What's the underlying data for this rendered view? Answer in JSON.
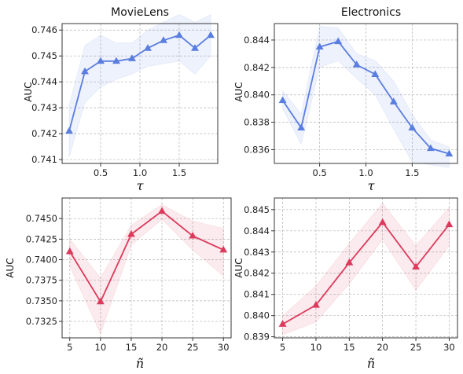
{
  "colors": {
    "blue": "#5a7de0",
    "red": "#dc3a5c"
  },
  "chart_data": [
    {
      "type": "line",
      "title": "MovieLens",
      "xlabel": "τ",
      "ylabel": "AUC",
      "color_key": "blue",
      "x": [
        0.1,
        0.3,
        0.5,
        0.7,
        0.9,
        1.1,
        1.3,
        1.5,
        1.7,
        1.9
      ],
      "y": [
        0.7421,
        0.7444,
        0.7448,
        0.7448,
        0.7449,
        0.7453,
        0.7456,
        0.7458,
        0.7453,
        0.7458
      ],
      "band_low": [
        0.7411,
        0.7432,
        0.7438,
        0.7441,
        0.7443,
        0.7446,
        0.7447,
        0.7448,
        0.7443,
        0.745
      ],
      "band_high": [
        0.7431,
        0.7454,
        0.7458,
        0.7455,
        0.7455,
        0.746,
        0.7463,
        0.7466,
        0.7463,
        0.7466
      ],
      "xlim": [
        0.01,
        1.99
      ],
      "ylim": [
        0.74085,
        0.74625
      ],
      "xticks": [
        0.5,
        1.0,
        1.5
      ],
      "xtick_labels": [
        "0.5",
        "1.0",
        "1.5"
      ],
      "yticks": [
        0.741,
        0.742,
        0.743,
        0.744,
        0.745,
        0.746
      ],
      "ytick_labels": [
        "0.741",
        "0.742",
        "0.743",
        "0.744",
        "0.745",
        "0.746"
      ]
    },
    {
      "type": "line",
      "title": "Electronics",
      "xlabel": "τ",
      "ylabel": "AUC",
      "color_key": "blue",
      "x": [
        0.1,
        0.3,
        0.5,
        0.7,
        0.9,
        1.1,
        1.3,
        1.5,
        1.7,
        1.9
      ],
      "y": [
        0.8396,
        0.8376,
        0.8435,
        0.8439,
        0.8422,
        0.8415,
        0.8395,
        0.8376,
        0.8361,
        0.8357
      ],
      "band_low": [
        0.839,
        0.8364,
        0.842,
        0.8425,
        0.8412,
        0.84,
        0.8375,
        0.8351,
        0.8349,
        0.8347
      ],
      "band_high": [
        0.8403,
        0.8386,
        0.845,
        0.8449,
        0.843,
        0.8425,
        0.841,
        0.8386,
        0.8367,
        0.8362
      ],
      "xlim": [
        0.01,
        1.99
      ],
      "ylim": [
        0.835,
        0.8452
      ],
      "xticks": [
        0.5,
        1.0,
        1.5
      ],
      "xtick_labels": [
        "0.5",
        "1.0",
        "1.5"
      ],
      "yticks": [
        0.836,
        0.838,
        0.84,
        0.842,
        0.844
      ],
      "ytick_labels": [
        "0.836",
        "0.838",
        "0.840",
        "0.842",
        "0.844"
      ]
    },
    {
      "type": "line",
      "title": "",
      "xlabel": "ñ",
      "ylabel": "AUC",
      "color_key": "red",
      "x": [
        5,
        10,
        15,
        20,
        25,
        30
      ],
      "y": [
        0.741,
        0.7349,
        0.7431,
        0.7459,
        0.7429,
        0.7412
      ],
      "band_low": [
        0.7392,
        0.731,
        0.7418,
        0.7449,
        0.7412,
        0.738
      ],
      "band_high": [
        0.7425,
        0.7378,
        0.7442,
        0.7467,
        0.7447,
        0.7438
      ],
      "xlim": [
        3.75,
        31.25
      ],
      "ylim": [
        0.7305,
        0.7475
      ],
      "xticks": [
        5,
        10,
        15,
        20,
        25,
        30
      ],
      "xtick_labels": [
        "5",
        "10",
        "15",
        "20",
        "25",
        "30"
      ],
      "yticks": [
        0.7325,
        0.735,
        0.7375,
        0.74,
        0.7425,
        0.745
      ],
      "ytick_labels": [
        "0.7325",
        "0.7350",
        "0.7375",
        "0.7400",
        "0.7425",
        "0.7450"
      ]
    },
    {
      "type": "line",
      "title": "",
      "xlabel": "ñ",
      "ylabel": "AUC",
      "color_key": "red",
      "x": [
        5,
        10,
        15,
        20,
        25,
        30
      ],
      "y": [
        0.8396,
        0.8405,
        0.8425,
        0.8444,
        0.8423,
        0.8443
      ],
      "band_low": [
        0.8391,
        0.8397,
        0.8415,
        0.8436,
        0.8412,
        0.8433
      ],
      "band_high": [
        0.84,
        0.8414,
        0.8434,
        0.8453,
        0.8433,
        0.8451
      ],
      "xlim": [
        3.75,
        31.25
      ],
      "ylim": [
        0.83895,
        0.84555
      ],
      "xticks": [
        5,
        10,
        15,
        20,
        25,
        30
      ],
      "xtick_labels": [
        "5",
        "10",
        "15",
        "20",
        "25",
        "30"
      ],
      "yticks": [
        0.839,
        0.84,
        0.841,
        0.842,
        0.843,
        0.844,
        0.845
      ],
      "ytick_labels": [
        "0.839",
        "0.840",
        "0.841",
        "0.842",
        "0.843",
        "0.844",
        "0.845"
      ]
    }
  ]
}
